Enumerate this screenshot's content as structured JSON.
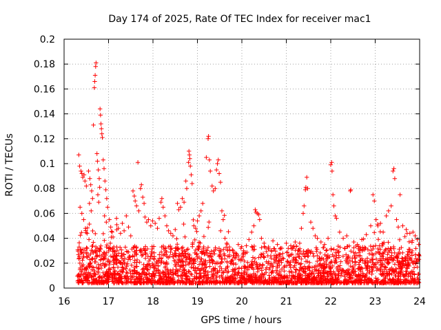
{
  "chart_data": {
    "type": "scatter",
    "title": "Day 174 of 2025, Rate Of TEC Index for receiver mac1",
    "xlabel": "GPS time / hours",
    "ylabel": "ROTI / TECUs",
    "xlim": [
      16,
      24
    ],
    "ylim": [
      0,
      0.2
    ],
    "xticks": [
      "16",
      "17",
      "18",
      "19",
      "20",
      "21",
      "22",
      "23",
      "24"
    ],
    "yticks": [
      "0",
      "0.02",
      "0.04",
      "0.06",
      "0.08",
      "0.1",
      "0.12",
      "0.14",
      "0.16",
      "0.18",
      "0.2"
    ],
    "grid": true,
    "marker": "+",
    "color": "#ff0000",
    "series": [
      {
        "name": "ROTI",
        "points": [
          [
            16.33,
            0.107
          ],
          [
            16.35,
            0.098
          ],
          [
            16.38,
            0.094
          ],
          [
            16.4,
            0.092
          ],
          [
            16.42,
            0.089
          ],
          [
            16.45,
            0.091
          ],
          [
            16.47,
            0.086
          ],
          [
            16.5,
            0.082
          ],
          [
            16.36,
            0.065
          ],
          [
            16.4,
            0.06
          ],
          [
            16.44,
            0.055
          ],
          [
            16.48,
            0.048
          ],
          [
            16.52,
            0.044
          ],
          [
            16.56,
            0.039
          ],
          [
            16.34,
            0.033
          ],
          [
            16.38,
            0.028
          ],
          [
            16.55,
            0.094
          ],
          [
            16.58,
            0.088
          ],
          [
            16.6,
            0.083
          ],
          [
            16.62,
            0.078
          ],
          [
            16.64,
            0.072
          ],
          [
            16.57,
            0.068
          ],
          [
            16.61,
            0.062
          ],
          [
            16.66,
            0.131
          ],
          [
            16.68,
            0.161
          ],
          [
            16.69,
            0.166
          ],
          [
            16.7,
            0.171
          ],
          [
            16.71,
            0.178
          ],
          [
            16.72,
            0.181
          ],
          [
            16.74,
            0.108
          ],
          [
            16.75,
            0.102
          ],
          [
            16.77,
            0.095
          ],
          [
            16.79,
            0.088
          ],
          [
            16.8,
            0.081
          ],
          [
            16.76,
            0.075
          ],
          [
            16.78,
            0.069
          ],
          [
            16.81,
            0.144
          ],
          [
            16.82,
            0.139
          ],
          [
            16.83,
            0.132
          ],
          [
            16.84,
            0.128
          ],
          [
            16.85,
            0.124
          ],
          [
            16.86,
            0.121
          ],
          [
            16.88,
            0.103
          ],
          [
            16.9,
            0.096
          ],
          [
            16.92,
            0.086
          ],
          [
            16.94,
            0.079
          ],
          [
            16.96,
            0.072
          ],
          [
            16.98,
            0.065
          ],
          [
            16.91,
            0.058
          ],
          [
            16.95,
            0.053
          ],
          [
            17.02,
            0.055
          ],
          [
            17.05,
            0.049
          ],
          [
            17.08,
            0.045
          ],
          [
            17.1,
            0.041
          ],
          [
            17.04,
            0.036
          ],
          [
            17.12,
            0.033
          ],
          [
            17.18,
            0.056
          ],
          [
            17.22,
            0.048
          ],
          [
            17.27,
            0.044
          ],
          [
            17.31,
            0.052
          ],
          [
            17.35,
            0.046
          ],
          [
            17.4,
            0.058
          ],
          [
            17.45,
            0.049
          ],
          [
            17.5,
            0.042
          ],
          [
            17.55,
            0.078
          ],
          [
            17.58,
            0.074
          ],
          [
            17.6,
            0.07
          ],
          [
            17.63,
            0.066
          ],
          [
            17.66,
            0.101
          ],
          [
            17.68,
            0.062
          ],
          [
            17.72,
            0.08
          ],
          [
            17.74,
            0.083
          ],
          [
            17.77,
            0.073
          ],
          [
            17.8,
            0.068
          ],
          [
            17.82,
            0.057
          ],
          [
            17.86,
            0.053
          ],
          [
            17.9,
            0.055
          ],
          [
            17.95,
            0.05
          ],
          [
            17.99,
            0.054
          ],
          [
            18.05,
            0.052
          ],
          [
            18.1,
            0.048
          ],
          [
            18.14,
            0.056
          ],
          [
            18.18,
            0.069
          ],
          [
            18.2,
            0.072
          ],
          [
            18.23,
            0.065
          ],
          [
            18.27,
            0.058
          ],
          [
            18.31,
            0.05
          ],
          [
            18.35,
            0.046
          ],
          [
            18.4,
            0.044
          ],
          [
            18.45,
            0.042
          ],
          [
            18.5,
            0.047
          ],
          [
            18.55,
            0.068
          ],
          [
            18.58,
            0.063
          ],
          [
            18.62,
            0.065
          ],
          [
            18.66,
            0.072
          ],
          [
            18.7,
            0.069
          ],
          [
            18.74,
            0.086
          ],
          [
            18.76,
            0.08
          ],
          [
            18.8,
            0.101
          ],
          [
            18.81,
            0.11
          ],
          [
            18.82,
            0.107
          ],
          [
            18.83,
            0.104
          ],
          [
            18.84,
            0.098
          ],
          [
            18.86,
            0.091
          ],
          [
            18.88,
            0.084
          ],
          [
            18.92,
            0.05
          ],
          [
            18.96,
            0.048
          ],
          [
            19.0,
            0.054
          ],
          [
            19.04,
            0.058
          ],
          [
            19.08,
            0.062
          ],
          [
            19.12,
            0.068
          ],
          [
            19.2,
            0.105
          ],
          [
            19.24,
            0.12
          ],
          [
            19.25,
            0.122
          ],
          [
            19.27,
            0.103
          ],
          [
            19.29,
            0.094
          ],
          [
            19.33,
            0.082
          ],
          [
            19.36,
            0.078
          ],
          [
            19.4,
            0.08
          ],
          [
            19.43,
            0.095
          ],
          [
            19.45,
            0.1
          ],
          [
            19.47,
            0.103
          ],
          [
            19.49,
            0.092
          ],
          [
            19.52,
            0.085
          ],
          [
            19.55,
            0.062
          ],
          [
            19.58,
            0.055
          ],
          [
            19.62,
            0.04
          ],
          [
            19.66,
            0.036
          ],
          [
            19.72,
            0.033
          ],
          [
            19.8,
            0.03
          ],
          [
            19.86,
            0.028
          ],
          [
            19.92,
            0.035
          ],
          [
            19.98,
            0.032
          ],
          [
            20.04,
            0.03
          ],
          [
            20.1,
            0.034
          ],
          [
            20.16,
            0.039
          ],
          [
            20.22,
            0.045
          ],
          [
            20.27,
            0.05
          ],
          [
            20.3,
            0.063
          ],
          [
            20.32,
            0.061
          ],
          [
            20.35,
            0.06
          ],
          [
            20.38,
            0.059
          ],
          [
            20.4,
            0.055
          ],
          [
            20.44,
            0.04
          ],
          [
            20.5,
            0.036
          ],
          [
            20.6,
            0.033
          ],
          [
            20.7,
            0.038
          ],
          [
            20.8,
            0.035
          ],
          [
            20.9,
            0.032
          ],
          [
            21.0,
            0.036
          ],
          [
            21.1,
            0.034
          ],
          [
            21.2,
            0.037
          ],
          [
            21.3,
            0.036
          ],
          [
            21.34,
            0.048
          ],
          [
            21.38,
            0.06
          ],
          [
            21.4,
            0.066
          ],
          [
            21.43,
            0.079
          ],
          [
            21.44,
            0.081
          ],
          [
            21.46,
            0.089
          ],
          [
            21.48,
            0.08
          ],
          [
            21.55,
            0.053
          ],
          [
            21.6,
            0.048
          ],
          [
            21.65,
            0.042
          ],
          [
            21.7,
            0.04
          ],
          [
            21.78,
            0.037
          ],
          [
            21.86,
            0.035
          ],
          [
            21.94,
            0.04
          ],
          [
            22.0,
            0.099
          ],
          [
            22.02,
            0.101
          ],
          [
            22.03,
            0.094
          ],
          [
            22.05,
            0.075
          ],
          [
            22.07,
            0.066
          ],
          [
            22.1,
            0.058
          ],
          [
            22.13,
            0.056
          ],
          [
            22.2,
            0.045
          ],
          [
            22.28,
            0.04
          ],
          [
            22.36,
            0.042
          ],
          [
            22.44,
            0.078
          ],
          [
            22.45,
            0.079
          ],
          [
            22.52,
            0.037
          ],
          [
            22.6,
            0.035
          ],
          [
            22.7,
            0.039
          ],
          [
            22.8,
            0.043
          ],
          [
            22.9,
            0.05
          ],
          [
            22.95,
            0.075
          ],
          [
            22.98,
            0.07
          ],
          [
            23.02,
            0.055
          ],
          [
            23.06,
            0.05
          ],
          [
            23.12,
            0.052
          ],
          [
            23.18,
            0.045
          ],
          [
            23.25,
            0.058
          ],
          [
            23.3,
            0.062
          ],
          [
            23.36,
            0.066
          ],
          [
            23.4,
            0.094
          ],
          [
            23.42,
            0.096
          ],
          [
            23.44,
            0.088
          ],
          [
            23.48,
            0.055
          ],
          [
            23.52,
            0.049
          ],
          [
            23.56,
            0.075
          ],
          [
            23.62,
            0.05
          ],
          [
            23.7,
            0.047
          ],
          [
            23.78,
            0.044
          ],
          [
            23.85,
            0.045
          ],
          [
            23.9,
            0.042
          ],
          [
            23.95,
            0.039
          ],
          [
            23.98,
            0.035
          ]
        ]
      }
    ]
  }
}
